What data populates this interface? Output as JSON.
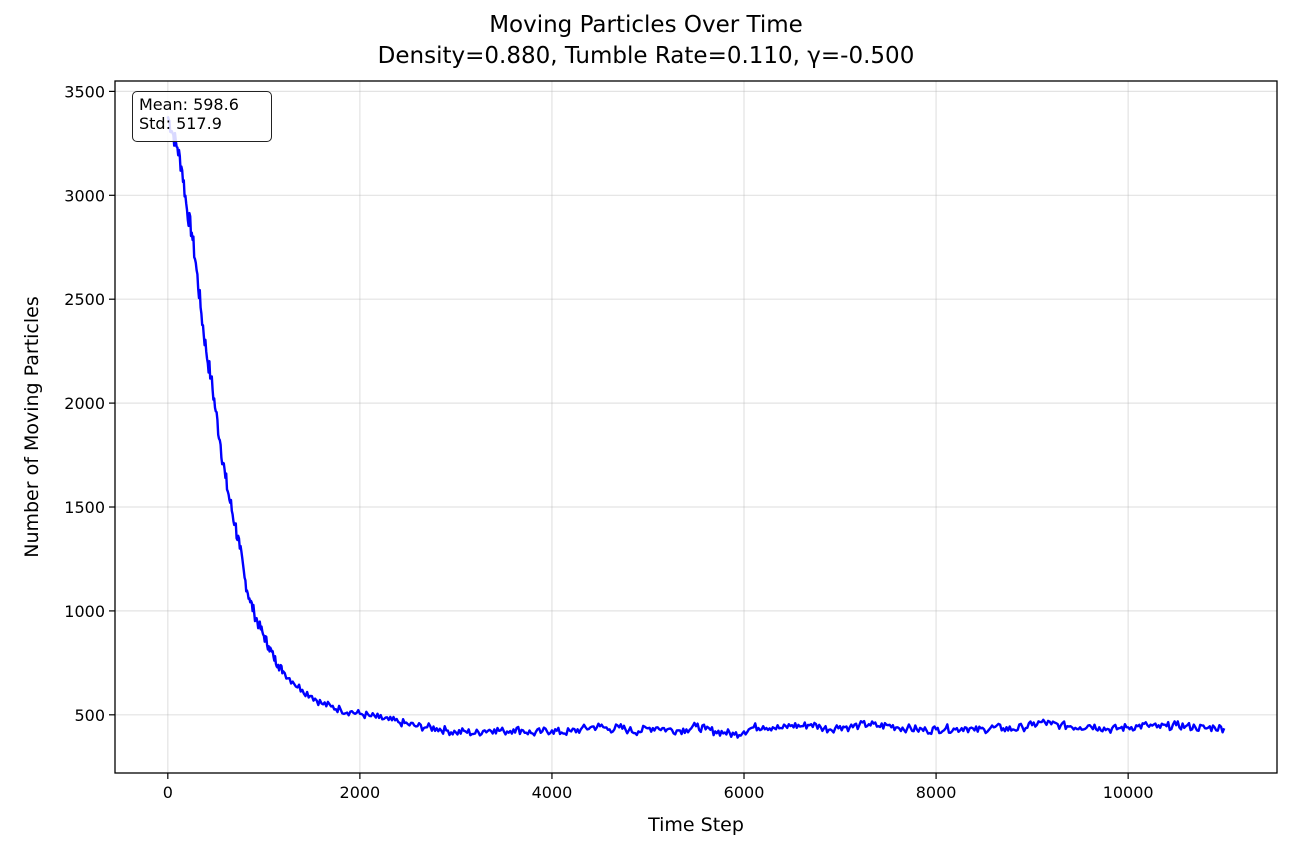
{
  "chart_data": {
    "type": "line",
    "title": "Moving Particles Over Time",
    "subtitle": "Density=0.880, Tumble Rate=0.110, γ=-0.500",
    "xlabel": "Time Step",
    "ylabel": "Number of Moving Particles",
    "xlim": [
      -550,
      11550
    ],
    "ylim": [
      220,
      3550
    ],
    "xticks": [
      0,
      2000,
      4000,
      6000,
      8000,
      10000
    ],
    "yticks": [
      500,
      1000,
      1500,
      2000,
      2500,
      3000,
      3500
    ],
    "grid": true,
    "line_color": "#0000ff",
    "annotation": {
      "mean": "Mean: 598.6",
      "std": "Std: 517.9"
    },
    "series": [
      {
        "x": [
          0,
          50,
          100,
          150,
          200,
          250,
          300,
          350,
          400,
          450,
          500,
          550,
          600,
          650,
          700,
          750,
          800,
          850,
          900,
          950,
          1000,
          1050,
          1100,
          1150,
          1200,
          1300,
          1400,
          1500,
          1600,
          1700,
          1800,
          1900,
          2000,
          2100,
          2200,
          2300,
          2400,
          2500,
          2600,
          2700,
          2800,
          2900,
          3000,
          3100,
          3200,
          3300,
          3400,
          3500,
          3600,
          3700,
          3800,
          3900,
          4000,
          4100,
          4200,
          4300,
          4400,
          4500,
          4600,
          4700,
          4800,
          4900,
          5000,
          5100,
          5200,
          5300,
          5400,
          5500,
          5600,
          5700,
          5800,
          5900,
          6000,
          6100,
          6200,
          6300,
          6400,
          6500,
          6600,
          6700,
          6800,
          6900,
          7000,
          7100,
          7200,
          7300,
          7400,
          7500,
          7600,
          7700,
          7800,
          7900,
          8000,
          8100,
          8200,
          8300,
          8400,
          8500,
          8600,
          8700,
          8800,
          8900,
          9000,
          9100,
          9200,
          9300,
          9400,
          9500,
          9600,
          9700,
          9800,
          9900,
          10000,
          10100,
          10200,
          10300,
          10400,
          10500,
          10600,
          10700,
          10800,
          10900,
          11000
        ],
        "y": [
          3380,
          3300,
          3230,
          3120,
          2930,
          2820,
          2640,
          2430,
          2250,
          2120,
          1960,
          1800,
          1640,
          1520,
          1420,
          1300,
          1160,
          1060,
          990,
          930,
          880,
          830,
          780,
          740,
          710,
          660,
          620,
          590,
          555,
          540,
          525,
          515,
          505,
          495,
          485,
          475,
          465,
          455,
          445,
          440,
          435,
          425,
          415,
          420,
          410,
          425,
          430,
          420,
          430,
          425,
          410,
          420,
          425,
          415,
          420,
          430,
          440,
          445,
          430,
          440,
          425,
          420,
          435,
          440,
          430,
          425,
          430,
          445,
          430,
          420,
          415,
          405,
          420,
          440,
          445,
          440,
          435,
          450,
          445,
          455,
          440,
          430,
          445,
          440,
          450,
          455,
          445,
          450,
          440,
          435,
          430,
          425,
          430,
          435,
          430,
          440,
          425,
          430,
          440,
          435,
          430,
          440,
          450,
          465,
          455,
          450,
          445,
          440,
          450,
          440,
          430,
          435,
          440,
          445,
          450,
          440,
          445,
          450,
          445,
          440,
          435,
          440,
          435
        ]
      }
    ]
  }
}
